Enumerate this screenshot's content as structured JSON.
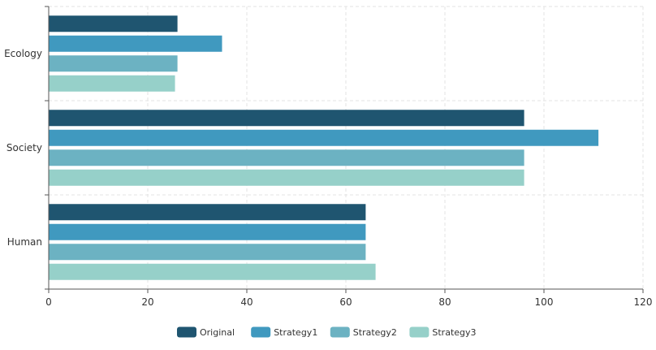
{
  "chart_data": {
    "type": "bar",
    "orientation": "horizontal",
    "categories": [
      "Ecology",
      "Society",
      "Human"
    ],
    "series": [
      {
        "name": "Original",
        "color": "#1f5570",
        "values": [
          26,
          96,
          64
        ]
      },
      {
        "name": "Strategy1",
        "color": "#4099bf",
        "values": [
          35,
          111,
          64
        ]
      },
      {
        "name": "Strategy2",
        "color": "#6cb2c2",
        "values": [
          26,
          96,
          64
        ]
      },
      {
        "name": "Strategy3",
        "color": "#96d0c9",
        "values": [
          25.5,
          96,
          66
        ]
      }
    ],
    "x_ticks": [
      "0",
      "20",
      "40",
      "60",
      "80",
      "100",
      "120"
    ],
    "xlim": [
      0,
      120
    ],
    "grid": true,
    "legend_position": "bottom-center",
    "title": "",
    "xlabel": "",
    "ylabel": ""
  }
}
